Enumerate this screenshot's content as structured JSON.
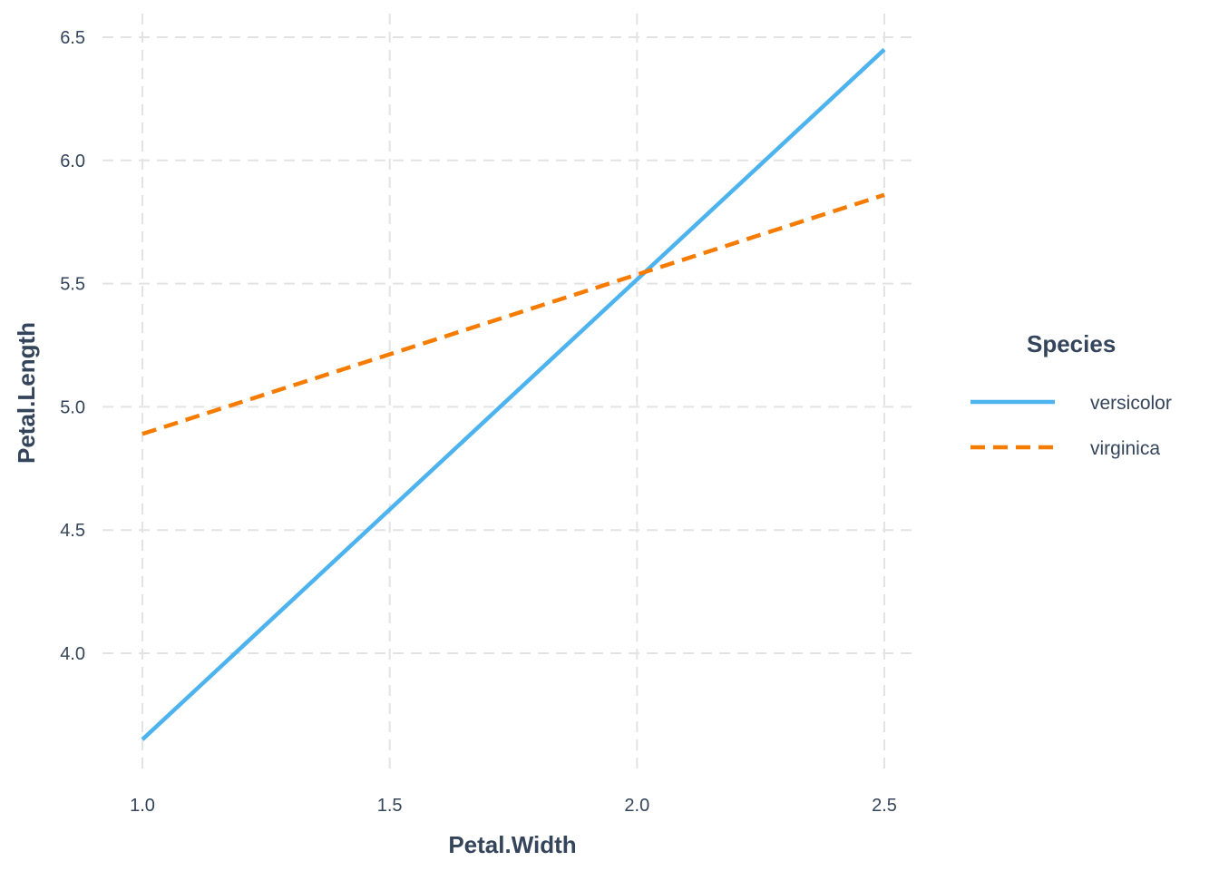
{
  "chart_data": {
    "type": "line",
    "title": "",
    "xlabel": "Petal.Width",
    "ylabel": "Petal.Length",
    "xlim": [
      0.95,
      2.55
    ],
    "ylim": [
      3.5,
      6.55
    ],
    "x_ticks": [
      "1.0",
      "1.5",
      "2.0",
      "2.5"
    ],
    "y_ticks": [
      "4.0",
      "4.5",
      "5.0",
      "5.5",
      "6.0",
      "6.5"
    ],
    "grid": true,
    "legend": {
      "title": "Species",
      "placement": "right"
    },
    "series": [
      {
        "name": "versicolor",
        "x": [
          1.0,
          2.5
        ],
        "y": [
          3.65,
          6.45
        ],
        "color": "#4db3ee",
        "style": "solid"
      },
      {
        "name": "virginica",
        "x": [
          1.0,
          2.5
        ],
        "y": [
          4.89,
          5.86
        ],
        "color": "#f57c00",
        "style": "dashed"
      }
    ]
  }
}
